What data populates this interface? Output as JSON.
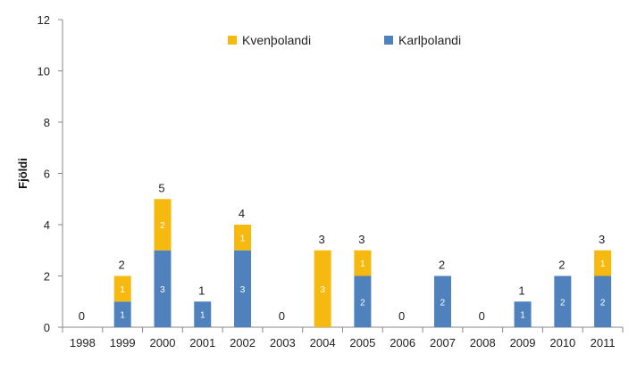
{
  "chart_data": {
    "type": "bar",
    "stacked": true,
    "categories": [
      "1998",
      "1999",
      "2000",
      "2001",
      "2002",
      "2003",
      "2004",
      "2005",
      "2006",
      "2007",
      "2008",
      "2009",
      "2010",
      "2011"
    ],
    "series": [
      {
        "name": "Karlþolandi",
        "color": "#4f81bd",
        "values": [
          0,
          1,
          3,
          1,
          3,
          0,
          0,
          2,
          0,
          2,
          0,
          1,
          2,
          2
        ]
      },
      {
        "name": "Kvenþolandi",
        "color": "#f5b90f",
        "values": [
          0,
          1,
          2,
          0,
          1,
          0,
          3,
          1,
          0,
          0,
          0,
          0,
          0,
          1
        ]
      }
    ],
    "totals": [
      0,
      2,
      5,
      1,
      4,
      0,
      3,
      3,
      0,
      2,
      0,
      1,
      2,
      3
    ],
    "ylabel": "Fjöldi",
    "xlabel": "",
    "title": "",
    "ylim": [
      0,
      12
    ],
    "yticks": [
      0,
      2,
      4,
      6,
      8,
      10,
      12
    ],
    "legend": {
      "placement": "top",
      "order": [
        "Kvenþolandi",
        "Karlþolandi"
      ]
    },
    "grid": false
  }
}
